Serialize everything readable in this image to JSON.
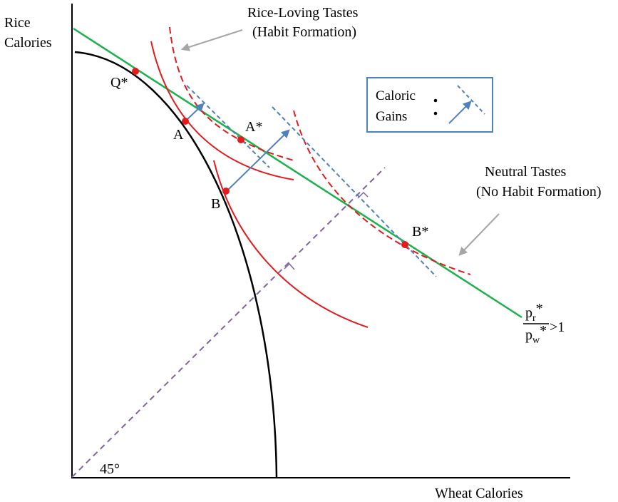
{
  "axes": {
    "y_label_line1": "Rice",
    "y_label_line2": "Calories",
    "x_label": "Wheat Calories",
    "angle_label": "45°"
  },
  "annotations": {
    "rice_loving_line1": "Rice-Loving Tastes",
    "rice_loving_line2": "(Habit Formation)",
    "neutral_line1": "Neutral Tastes",
    "neutral_line2": "(No Habit Formation)"
  },
  "points": {
    "q_star": "Q*",
    "a": "A",
    "a_star": "A*",
    "b": "B",
    "b_star": "B*"
  },
  "legend": {
    "line1": "Caloric",
    "line2": "Gains"
  },
  "price_ratio": {
    "num_base": "p",
    "num_sub": "r",
    "num_sup": "*",
    "den_base": "p",
    "den_sub": "w",
    "den_sup": "*",
    "relation": ">1"
  },
  "colors": {
    "axis": "#000000",
    "ppf": "#000000",
    "indifference": "#e41a1c",
    "price_line": "#19b24b",
    "caloric_gain": "#4f81bd",
    "diagonal": "#8064a2",
    "point": "#e41a1c",
    "callout_arrow": "#a6a6a6",
    "legend_border": "#4f81bd"
  }
}
